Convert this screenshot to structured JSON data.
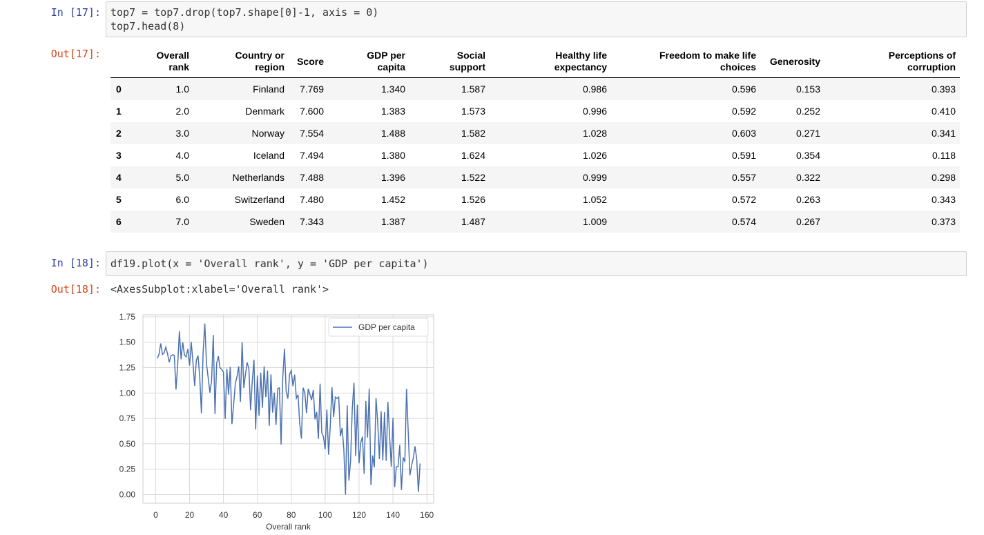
{
  "cells": [
    {
      "prompt": "In [17]:",
      "code": [
        "top7 = top7.drop(top7.shape[0]-1, axis = 0)",
        "top7.head(8)"
      ]
    },
    {
      "prompt": "Out[17]:"
    },
    {
      "prompt": "In [18]:",
      "code": [
        "df19.plot(x = 'Overall rank', y = 'GDP per capita')"
      ]
    },
    {
      "prompt": "Out[18]:",
      "text": "<AxesSubplot:xlabel='Overall rank'>"
    }
  ],
  "table": {
    "columns": [
      "Overall rank",
      "Country or region",
      "Score",
      "GDP per capita",
      "Social support",
      "Healthy life expectancy",
      "Freedom to make life choices",
      "Generosity",
      "Perceptions of corruption"
    ],
    "rows": [
      {
        "index": "0",
        "cells": [
          "1.0",
          "Finland",
          "7.769",
          "1.340",
          "1.587",
          "0.986",
          "0.596",
          "0.153",
          "0.393"
        ]
      },
      {
        "index": "1",
        "cells": [
          "2.0",
          "Denmark",
          "7.600",
          "1.383",
          "1.573",
          "0.996",
          "0.592",
          "0.252",
          "0.410"
        ]
      },
      {
        "index": "2",
        "cells": [
          "3.0",
          "Norway",
          "7.554",
          "1.488",
          "1.582",
          "1.028",
          "0.603",
          "0.271",
          "0.341"
        ]
      },
      {
        "index": "3",
        "cells": [
          "4.0",
          "Iceland",
          "7.494",
          "1.380",
          "1.624",
          "1.026",
          "0.591",
          "0.354",
          "0.118"
        ]
      },
      {
        "index": "4",
        "cells": [
          "5.0",
          "Netherlands",
          "7.488",
          "1.396",
          "1.522",
          "0.999",
          "0.557",
          "0.322",
          "0.298"
        ]
      },
      {
        "index": "5",
        "cells": [
          "6.0",
          "Switzerland",
          "7.480",
          "1.452",
          "1.526",
          "1.052",
          "0.572",
          "0.263",
          "0.343"
        ]
      },
      {
        "index": "6",
        "cells": [
          "7.0",
          "Sweden",
          "7.343",
          "1.387",
          "1.487",
          "1.009",
          "0.574",
          "0.267",
          "0.373"
        ]
      }
    ]
  },
  "chart_data": {
    "type": "line",
    "xlabel": "Overall rank",
    "x": [
      1,
      2,
      3,
      4,
      5,
      6,
      7,
      8,
      9,
      10,
      11,
      12,
      13,
      14,
      15,
      16,
      17,
      18,
      19,
      20,
      21,
      22,
      23,
      24,
      25,
      26,
      27,
      28,
      29,
      30,
      31,
      32,
      33,
      34,
      35,
      36,
      37,
      38,
      39,
      40,
      41,
      42,
      43,
      44,
      45,
      46,
      47,
      48,
      49,
      50,
      51,
      52,
      53,
      54,
      55,
      56,
      57,
      58,
      59,
      60,
      61,
      62,
      63,
      64,
      65,
      66,
      67,
      68,
      69,
      70,
      71,
      72,
      73,
      74,
      75,
      76,
      77,
      78,
      79,
      80,
      81,
      82,
      83,
      84,
      85,
      86,
      87,
      88,
      89,
      90,
      91,
      92,
      93,
      94,
      95,
      96,
      97,
      98,
      99,
      100,
      101,
      102,
      103,
      104,
      105,
      106,
      107,
      108,
      109,
      110,
      111,
      112,
      113,
      114,
      115,
      116,
      117,
      118,
      119,
      120,
      121,
      122,
      123,
      124,
      125,
      126,
      127,
      128,
      129,
      130,
      131,
      132,
      133,
      134,
      135,
      136,
      137,
      138,
      139,
      140,
      141,
      142,
      143,
      144,
      145,
      146,
      147,
      148,
      149,
      150,
      151,
      152,
      153,
      154,
      155,
      156
    ],
    "series": [
      {
        "name": "GDP per capita",
        "color": "#4c72b0",
        "values": [
          1.34,
          1.383,
          1.488,
          1.38,
          1.396,
          1.452,
          1.387,
          1.303,
          1.365,
          1.376,
          1.372,
          1.034,
          1.276,
          1.609,
          1.333,
          1.499,
          1.373,
          1.356,
          1.433,
          1.269,
          1.503,
          1.3,
          1.07,
          1.324,
          1.368,
          1.159,
          0.8,
          1.403,
          1.684,
          1.286,
          1.149,
          1.004,
          1.124,
          1.572,
          0.794,
          1.294,
          1.362,
          1.246,
          1.231,
          1.206,
          0.745,
          1.238,
          0.985,
          1.258,
          0.694,
          0.882,
          1.092,
          1.162,
          1.263,
          0.912,
          1.5,
          1.05,
          1.187,
          1.301,
          1.237,
          0.831,
          1.12,
          1.327,
          0.642,
          1.173,
          0.776,
          1.201,
          0.855,
          1.263,
          0.96,
          1.221,
          0.677,
          1.183,
          0.807,
          1.004,
          0.685,
          1.044,
          1.051,
          0.493,
          1.155,
          1.438,
          1.015,
          0.945,
          1.183,
          1.221,
          1.067,
          1.181,
          0.948,
          0.983,
          0.696,
          0.551,
          1.052,
          1.002,
          0.801,
          1.043,
          0.987,
          0.931,
          1.029,
          0.741,
          0.813,
          0.549,
          1.092,
          0.611,
          0.569,
          0.446,
          0.837,
          0.393,
          0.673,
          1.057,
          0.764,
          0.96,
          0.947,
          0.96,
          0.574,
          0.657,
          0.45,
          0.0,
          0.879,
          0.138,
          0.331,
          0.85,
          1.1,
          0.38,
          0.886,
          0.308,
          0.512,
          0.57,
          0.204,
          0.921,
          0.562,
          1.043,
          0.094,
          0.385,
          0.268,
          0.949,
          0.71,
          0.35,
          0.82,
          0.336,
          0.811,
          0.332,
          0.913,
          0.578,
          0.275,
          0.755,
          0.073,
          0.274,
          0.274,
          0.489,
          0.046,
          0.366,
          0.323,
          1.041,
          0.619,
          0.191,
          0.287,
          0.359,
          0.476,
          0.35,
          0.026,
          0.306
        ]
      }
    ],
    "xlim": [
      -7.5,
      164
    ],
    "ylim": [
      -0.085,
      1.77
    ],
    "xticks": [
      0,
      20,
      40,
      60,
      80,
      100,
      120,
      140,
      160
    ],
    "yticks": [
      {
        "value": 0,
        "label": "0.00"
      },
      {
        "value": 0.25,
        "label": "0.25"
      },
      {
        "value": 0.5,
        "label": "0.50"
      },
      {
        "value": 0.75,
        "label": "0.75"
      },
      {
        "value": 1,
        "label": "1.00"
      },
      {
        "value": 1.25,
        "label": "1.25"
      },
      {
        "value": 1.5,
        "label": "1.50"
      },
      {
        "value": 1.75,
        "label": "1.75"
      }
    ],
    "grid": true,
    "legend": "upper right"
  }
}
